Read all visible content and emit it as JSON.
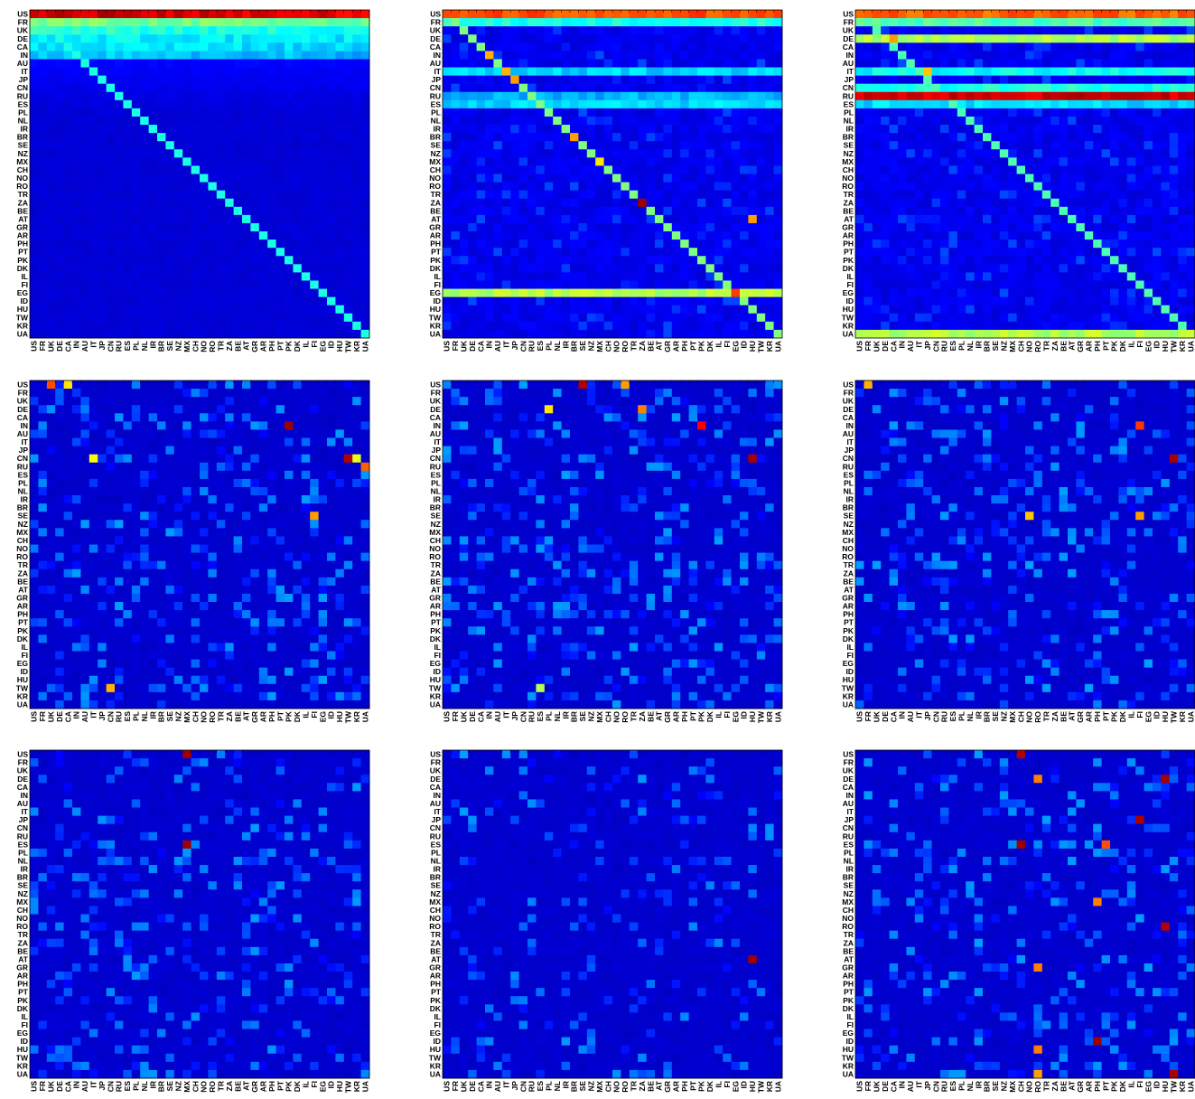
{
  "chart_data": {
    "type": "heatmap",
    "labels": [
      "US",
      "FR",
      "UK",
      "DE",
      "CA",
      "IN",
      "AU",
      "IT",
      "JP",
      "CN",
      "RU",
      "ES",
      "PL",
      "NL",
      "IR",
      "BR",
      "SE",
      "NZ",
      "MX",
      "CH",
      "NO",
      "RO",
      "TR",
      "ZA",
      "BE",
      "AT",
      "GR",
      "AR",
      "PH",
      "PT",
      "PK",
      "DK",
      "IL",
      "FI",
      "EG",
      "ID",
      "HU",
      "TW",
      "KR",
      "UA"
    ],
    "colormap": [
      "#00008f",
      "#0000ff",
      "#00ffff",
      "#ffff00",
      "#ff0000",
      "#800000"
    ],
    "value_range": [
      0,
      1
    ],
    "panels": [
      {
        "pattern": "row-gradient-with-diagonal",
        "rows": [
          {
            "label": "US",
            "level": 0.93
          },
          {
            "label": "FR",
            "level": 0.5
          },
          {
            "label": "UK",
            "level": 0.42
          },
          {
            "label": "DE",
            "level": 0.38
          },
          {
            "label": "CA",
            "level": 0.36
          },
          {
            "label": "IN",
            "level": 0.33
          }
        ],
        "diagonal_level": 0.4
      },
      {
        "pattern": "rows-and-diagonal",
        "rows": [
          {
            "label": "US",
            "level": 0.8
          },
          {
            "label": "FR",
            "level": 0.4
          },
          {
            "label": "IT",
            "level": 0.33
          },
          {
            "label": "RU",
            "level": 0.3
          },
          {
            "label": "ES",
            "level": 0.34
          },
          {
            "label": "EG",
            "level": 0.55
          }
        ],
        "diagonal_level": 0.5,
        "cells": [
          {
            "row": "IN",
            "col": "IN",
            "value": 0.7
          },
          {
            "row": "IT",
            "col": "IT",
            "value": 0.7
          },
          {
            "row": "JP",
            "col": "JP",
            "value": 0.72
          },
          {
            "row": "BR",
            "col": "BR",
            "value": 0.72
          },
          {
            "row": "MX",
            "col": "MX",
            "value": 0.65
          },
          {
            "row": "ZA",
            "col": "ZA",
            "value": 0.97
          },
          {
            "row": "AT",
            "col": "HU",
            "value": 0.72
          },
          {
            "row": "EG",
            "col": "EG",
            "value": 0.82
          }
        ]
      },
      {
        "pattern": "rows-and-diagonal",
        "rows": [
          {
            "label": "US",
            "level": 0.78
          },
          {
            "label": "FR",
            "level": 0.45
          },
          {
            "label": "DE",
            "level": 0.55
          },
          {
            "label": "IT",
            "level": 0.38
          },
          {
            "label": "CN",
            "level": 0.4
          },
          {
            "label": "RU",
            "level": 0.92
          },
          {
            "label": "ES",
            "level": 0.34
          },
          {
            "label": "UA",
            "level": 0.55
          }
        ],
        "diagonal_level": 0.45,
        "cells": [
          {
            "row": "DE",
            "col": "CA",
            "value": 0.72
          },
          {
            "row": "IT",
            "col": "JP",
            "value": 0.68
          }
        ]
      },
      {
        "pattern": "sparse",
        "density": 0.22,
        "cells": [
          {
            "row": "US",
            "col": "UK",
            "value": 0.8
          },
          {
            "row": "US",
            "col": "CA",
            "value": 0.65
          },
          {
            "row": "IN",
            "col": "PK",
            "value": 0.97
          },
          {
            "row": "CN",
            "col": "TW",
            "value": 0.95
          },
          {
            "row": "CN",
            "col": "KR",
            "value": 0.6
          },
          {
            "row": "RU",
            "col": "UA",
            "value": 0.78
          },
          {
            "row": "SE",
            "col": "FI",
            "value": 0.72
          },
          {
            "row": "TW",
            "col": "CN",
            "value": 0.7
          },
          {
            "row": "CN",
            "col": "IT",
            "value": 0.62
          }
        ]
      },
      {
        "pattern": "sparse",
        "density": 0.22,
        "cells": [
          {
            "row": "US",
            "col": "SE",
            "value": 0.95
          },
          {
            "row": "US",
            "col": "RO",
            "value": 0.72
          },
          {
            "row": "IN",
            "col": "PK",
            "value": 0.88
          },
          {
            "row": "DE",
            "col": "ZA",
            "value": 0.75
          },
          {
            "row": "CN",
            "col": "HU",
            "value": 0.96
          },
          {
            "row": "DE",
            "col": "PL",
            "value": 0.65
          },
          {
            "row": "TW",
            "col": "ES",
            "value": 0.55
          }
        ]
      },
      {
        "pattern": "sparse",
        "density": 0.2,
        "cells": [
          {
            "row": "US",
            "col": "FR",
            "value": 0.7
          },
          {
            "row": "IN",
            "col": "FI",
            "value": 0.82
          },
          {
            "row": "CN",
            "col": "TW",
            "value": 0.96
          },
          {
            "row": "SE",
            "col": "NO",
            "value": 0.68
          },
          {
            "row": "SE",
            "col": "FI",
            "value": 0.72
          }
        ]
      },
      {
        "pattern": "sparse",
        "density": 0.18,
        "cells": [
          {
            "row": "US",
            "col": "MX",
            "value": 0.97
          },
          {
            "row": "ES",
            "col": "MX",
            "value": 0.97
          }
        ]
      },
      {
        "pattern": "sparse",
        "density": 0.12,
        "cells": [
          {
            "row": "AT",
            "col": "HU",
            "value": 0.97
          }
        ]
      },
      {
        "pattern": "sparse",
        "density": 0.18,
        "cells": [
          {
            "row": "US",
            "col": "CH",
            "value": 0.95
          },
          {
            "row": "DE",
            "col": "RO",
            "value": 0.75
          },
          {
            "row": "DE",
            "col": "HU",
            "value": 0.96
          },
          {
            "row": "JP",
            "col": "FI",
            "value": 0.96
          },
          {
            "row": "ES",
            "col": "PT",
            "value": 0.8
          },
          {
            "row": "ES",
            "col": "CH",
            "value": 0.97
          },
          {
            "row": "MX",
            "col": "PH",
            "value": 0.75
          },
          {
            "row": "RO",
            "col": "HU",
            "value": 0.95
          },
          {
            "row": "GR",
            "col": "RO",
            "value": 0.75
          },
          {
            "row": "HU",
            "col": "RO",
            "value": 0.75
          },
          {
            "row": "UA",
            "col": "RO",
            "value": 0.72
          },
          {
            "row": "UA",
            "col": "TW",
            "value": 0.96
          },
          {
            "row": "ID",
            "col": "PH",
            "value": 0.97
          }
        ]
      }
    ]
  }
}
